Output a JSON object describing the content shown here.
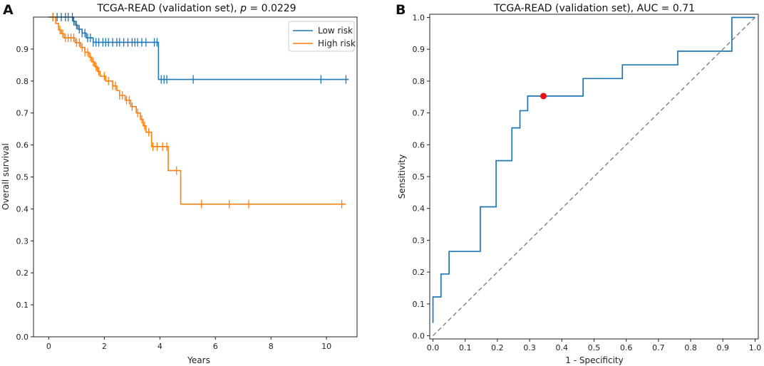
{
  "panels": {
    "a": {
      "letter": "A"
    },
    "b": {
      "letter": "B"
    }
  },
  "colors": {
    "low": "#1f77b4",
    "high": "#ff7f0e",
    "diag": "#808080",
    "point": "#e8101a"
  },
  "chart_data": [
    {
      "id": "km",
      "type": "line",
      "title_prefix": "TCGA-READ (validation set), ",
      "title_italic": "p",
      "title_suffix": " = 0.0229",
      "xlabel": "Years",
      "ylabel": "Overall survival",
      "xlim": [
        -0.55,
        11.1
      ],
      "ylim": [
        0.0,
        1.0
      ],
      "xticks": [
        0,
        2,
        4,
        6,
        8,
        10
      ],
      "yticks": [
        0.0,
        0.1,
        0.2,
        0.3,
        0.4,
        0.5,
        0.6,
        0.7,
        0.8,
        0.9
      ],
      "legend_position": "top-right",
      "series": [
        {
          "name": "Low risk",
          "color_key": "low",
          "steps": [
            [
              0,
              1.0
            ],
            [
              0.88,
              0.987
            ],
            [
              0.95,
              0.975
            ],
            [
              1.05,
              0.962
            ],
            [
              1.2,
              0.95
            ],
            [
              1.35,
              0.935
            ],
            [
              1.6,
              0.921
            ],
            [
              3.95,
              0.805
            ],
            [
              10.8,
              0.805
            ]
          ],
          "censors": [
            0.15,
            0.3,
            0.45,
            0.6,
            0.7,
            0.85,
            0.9,
            1.0,
            1.1,
            1.2,
            1.3,
            1.4,
            1.5,
            1.6,
            1.7,
            1.8,
            1.95,
            2.05,
            2.15,
            2.3,
            2.45,
            2.55,
            2.7,
            2.85,
            3.0,
            3.1,
            3.2,
            3.35,
            3.5,
            3.8,
            3.9,
            4.05,
            4.15,
            4.25,
            5.2,
            9.8,
            10.7
          ]
        },
        {
          "name": "High risk",
          "color_key": "high",
          "steps": [
            [
              0,
              1.0
            ],
            [
              0.25,
              0.98
            ],
            [
              0.35,
              0.96
            ],
            [
              0.45,
              0.948
            ],
            [
              0.55,
              0.935
            ],
            [
              0.95,
              0.92
            ],
            [
              1.15,
              0.905
            ],
            [
              1.3,
              0.89
            ],
            [
              1.45,
              0.875
            ],
            [
              1.55,
              0.86
            ],
            [
              1.65,
              0.845
            ],
            [
              1.75,
              0.83
            ],
            [
              1.85,
              0.815
            ],
            [
              2.05,
              0.8
            ],
            [
              2.3,
              0.785
            ],
            [
              2.45,
              0.77
            ],
            [
              2.55,
              0.755
            ],
            [
              2.75,
              0.74
            ],
            [
              2.95,
              0.72
            ],
            [
              3.15,
              0.7
            ],
            [
              3.3,
              0.68
            ],
            [
              3.4,
              0.66
            ],
            [
              3.5,
              0.64
            ],
            [
              3.7,
              0.595
            ],
            [
              4.3,
              0.52
            ],
            [
              4.75,
              0.415
            ],
            [
              10.7,
              0.415
            ]
          ],
          "censors": [
            0.15,
            0.4,
            0.5,
            0.6,
            0.7,
            0.8,
            0.9,
            1.0,
            1.1,
            1.2,
            1.3,
            1.4,
            1.5,
            1.6,
            1.7,
            1.8,
            2.0,
            2.15,
            2.3,
            2.4,
            2.55,
            2.65,
            2.8,
            2.9,
            3.0,
            3.2,
            3.35,
            3.45,
            3.6,
            3.75,
            3.9,
            4.1,
            4.25,
            4.6,
            5.5,
            6.5,
            7.2,
            10.55
          ]
        }
      ]
    },
    {
      "id": "roc",
      "type": "line",
      "title": "TCGA-READ (validation set), AUC = 0.71",
      "xlabel": "1 - Specificity",
      "ylabel": "Sensitivity",
      "xlim": [
        -0.01,
        1.01
      ],
      "ylim": [
        -0.01,
        1.01
      ],
      "xticks": [
        0.0,
        0.1,
        0.2,
        0.3,
        0.4,
        0.5,
        0.6,
        0.7,
        0.8,
        0.9,
        1.0
      ],
      "yticks": [
        0.0,
        0.1,
        0.2,
        0.3,
        0.4,
        0.5,
        0.6,
        0.7,
        0.8,
        0.9,
        1.0
      ],
      "series": [
        {
          "name": "ROC",
          "color_key": "low",
          "points": [
            [
              0.0,
              0.04
            ],
            [
              0.0,
              0.122
            ],
            [
              0.025,
              0.122
            ],
            [
              0.025,
              0.194
            ],
            [
              0.05,
              0.194
            ],
            [
              0.05,
              0.265
            ],
            [
              0.147,
              0.265
            ],
            [
              0.147,
              0.405
            ],
            [
              0.196,
              0.405
            ],
            [
              0.196,
              0.55
            ],
            [
              0.245,
              0.55
            ],
            [
              0.245,
              0.653
            ],
            [
              0.27,
              0.653
            ],
            [
              0.27,
              0.707
            ],
            [
              0.294,
              0.707
            ],
            [
              0.294,
              0.753
            ],
            [
              0.466,
              0.753
            ],
            [
              0.466,
              0.808
            ],
            [
              0.588,
              0.808
            ],
            [
              0.588,
              0.851
            ],
            [
              0.76,
              0.851
            ],
            [
              0.76,
              0.894
            ],
            [
              0.928,
              0.894
            ],
            [
              0.928,
              1.0
            ],
            [
              1.0,
              1.0
            ]
          ]
        }
      ],
      "diagonal": [
        [
          0,
          0
        ],
        [
          1,
          1
        ]
      ],
      "optimal_point": [
        0.343,
        0.753
      ]
    }
  ]
}
